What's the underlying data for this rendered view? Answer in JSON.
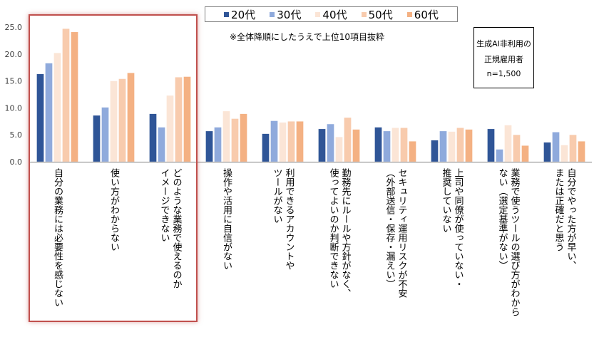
{
  "chart_data": {
    "type": "bar",
    "title": "",
    "xlabel": "",
    "ylabel": "",
    "ylim": [
      0,
      25
    ],
    "yticks": [
      "0.0",
      "5.0",
      "10.0",
      "15.0",
      "20.0",
      "25.0"
    ],
    "grid": false,
    "legend_position": "top",
    "categories": [
      "自分の業務には必要性を感じない",
      "使い方がわからない",
      "どのような業務で使えるのか\nイメージできない",
      "操作や活用に自信がない",
      "利用できるアカウントや\nツールがない",
      "勤務先にルールや方針がなく、\n使ってよいのか判断できない",
      "セキュリティ運用リスクが不安\n（外部送信・保存・漏えい）",
      "上司や同僚が使っていない・\n推奨していない",
      "業務で使うツールの選び方がわから\nない（選定基準がない）",
      "自分でやった方が早い、\nまたは正確だと思う"
    ],
    "series": [
      {
        "name": "20代",
        "color": "#2F5597",
        "values": [
          16.3,
          8.6,
          8.9,
          5.7,
          5.2,
          6.1,
          6.4,
          4.0,
          6.1,
          3.6
        ]
      },
      {
        "name": "30代",
        "color": "#8FAADC",
        "values": [
          18.3,
          10.1,
          6.4,
          6.4,
          7.6,
          7.0,
          5.7,
          5.7,
          2.3,
          5.5
        ]
      },
      {
        "name": "40代",
        "color": "#FBE5D6",
        "values": [
          20.2,
          15.0,
          12.3,
          9.4,
          7.3,
          4.6,
          6.3,
          5.6,
          6.8,
          3.1
        ]
      },
      {
        "name": "50代",
        "color": "#F8CBAD",
        "values": [
          24.7,
          15.4,
          15.7,
          8.0,
          7.5,
          8.2,
          6.3,
          6.3,
          5.0,
          5.0
        ]
      },
      {
        "name": "60代",
        "color": "#F4B183",
        "values": [
          24.1,
          16.5,
          15.8,
          8.9,
          7.5,
          6.0,
          3.8,
          6.0,
          3.0,
          3.8
        ]
      }
    ],
    "highlighted_categories": [
      0,
      1,
      2
    ],
    "annotations": {
      "note": "※全体降順にしたうえで上位10項目抜粋",
      "sample_line1": "生成AI非利用の",
      "sample_line2": "正規雇用者",
      "sample_line3": "n=1,500"
    }
  }
}
